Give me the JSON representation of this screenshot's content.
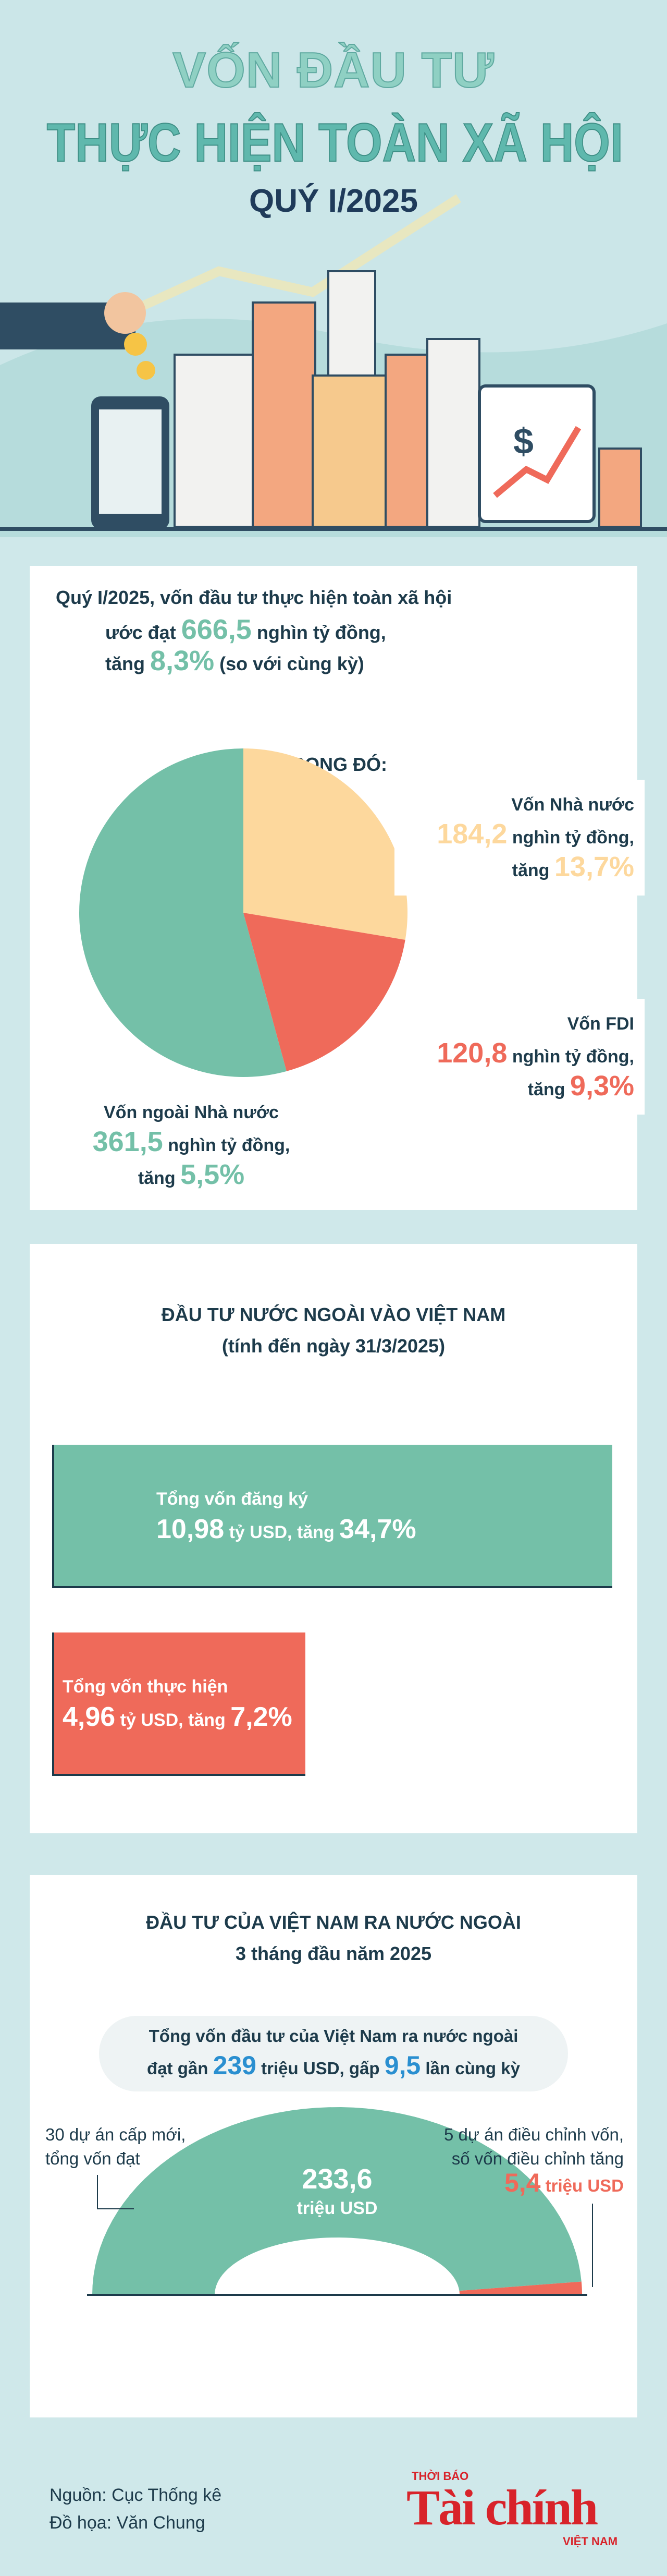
{
  "header": {
    "title_line1": "VỐN ĐẦU TƯ",
    "title_line2": "THỰC HIỆN TOÀN XÃ HỘI",
    "period": "QUÝ I/2025"
  },
  "summary": {
    "line1": "Quý I/2025, vốn đầu tư thực hiện toàn xã hội",
    "line2_prefix": "ước đạt",
    "total": "666,5",
    "unit": "nghìn tỷ đồng,",
    "growth_prefix": "tăng",
    "growth": "8,3%",
    "growth_suffix": "(so với cùng kỳ)"
  },
  "chart_data": [
    {
      "type": "pie",
      "title": "TRONG ĐÓ:",
      "categories": [
        "Vốn ngoài Nhà nước",
        "Vốn Nhà nước",
        "Vốn FDI"
      ],
      "values": [
        361.5,
        184.2,
        120.8
      ],
      "value_labels": [
        "361,5",
        "184,2",
        "120,8"
      ],
      "unit": "nghìn tỷ đồng,",
      "change_prefix": "tăng",
      "change_labels": [
        "5,5%",
        "13,7%",
        "9,3%"
      ],
      "colors": [
        "#74c0a8",
        "#fdd89d",
        "#ef6a5a"
      ]
    },
    {
      "type": "bar",
      "title": "ĐẦU TƯ NƯỚC NGOÀI VÀO VIỆT NAM",
      "subtitle": "(tính đến ngày 31/3/2025)",
      "categories": [
        "Tổng vốn đăng ký",
        "Tổng vốn thực hiện"
      ],
      "values": [
        10.98,
        4.96
      ],
      "value_labels": [
        "10,98",
        "4,96"
      ],
      "unit": "tỷ USD, tăng",
      "change_labels": [
        "34,7%",
        "7,2%"
      ],
      "colors": [
        "#74c0a8",
        "#ef6a5a"
      ]
    },
    {
      "type": "semicircle",
      "title": "ĐẦU TƯ CỦA VIỆT NAM RA NƯỚC NGOÀI",
      "subtitle": "3 tháng đầu năm 2025",
      "note_line1": "Tổng vốn đầu tư của Việt Nam ra nước ngoài",
      "note_prefix": "đạt gần",
      "note_total": "239",
      "note_middle": "triệu USD, gấp",
      "note_multiple": "9,5",
      "note_suffix": "lần cùng kỳ",
      "categories": [
        "30 dự án cấp mới, tổng vốn đạt",
        "5 dự án điều chỉnh vốn, số vốn điều chỉnh tăng"
      ],
      "values": [
        233.6,
        5.4
      ],
      "value_labels": [
        "233,6",
        "5,4"
      ],
      "unit": "triệu USD",
      "colors": [
        "#74c0a8",
        "#ef6a5a"
      ]
    }
  ],
  "footer": {
    "source": "Nguồn: Cục Thống kê",
    "design": "Đồ họa: Văn Chung",
    "logo_top": "THỜI BÁO",
    "logo_main": "Tài chính",
    "logo_bottom": "VIỆT NAM"
  }
}
